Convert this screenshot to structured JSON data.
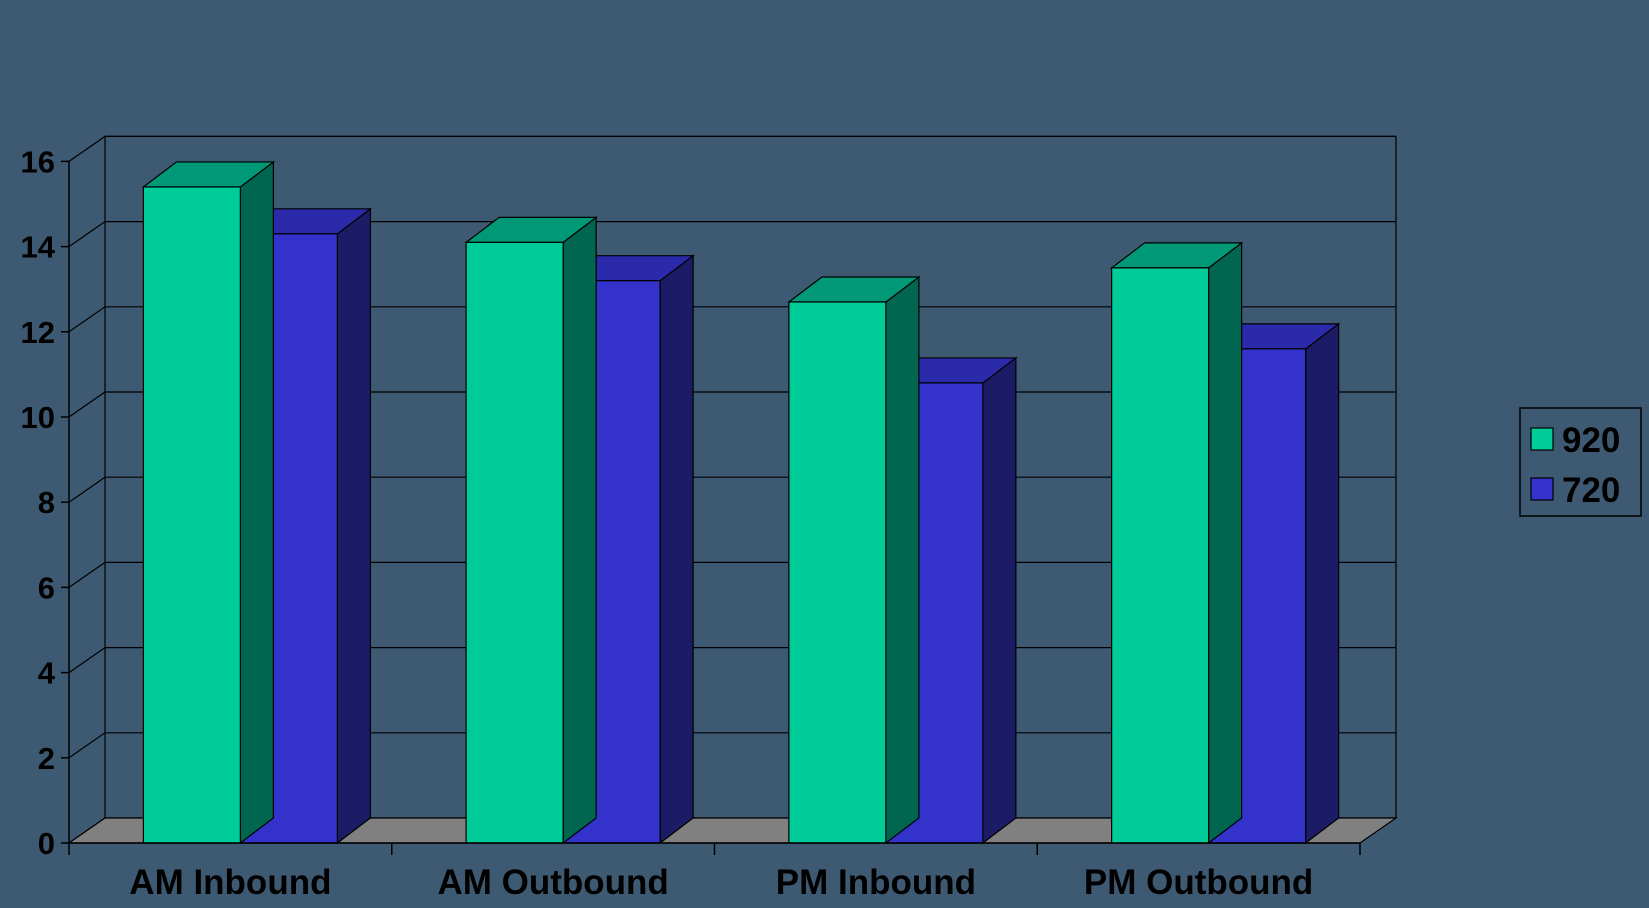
{
  "chart_data": {
    "type": "bar",
    "variant": "3d-clustered-column",
    "categories": [
      "AM Inbound",
      "AM Outbound",
      "PM Inbound",
      "PM Outbound"
    ],
    "series": [
      {
        "name": "920",
        "values": [
          15.4,
          14.1,
          12.7,
          13.5
        ]
      },
      {
        "name": "720",
        "values": [
          14.3,
          13.2,
          10.8,
          11.6
        ]
      }
    ],
    "ylim": [
      0,
      16
    ],
    "yticks": [
      0,
      2,
      4,
      6,
      8,
      10,
      12,
      14,
      16
    ],
    "grid": true,
    "legend": "right",
    "title": "",
    "xlabel": "",
    "ylabel": ""
  },
  "colors": {
    "background": "#3d5a72",
    "series_front": [
      "#00cc99",
      "#3333cc"
    ],
    "series_top": [
      "#009977",
      "#2a2aaa"
    ],
    "series_side": [
      "#006650",
      "#1c1c66"
    ],
    "floor": "#808080",
    "gridline": "#000000",
    "text": "#000000",
    "legend_swatch": [
      "#00cc99",
      "#3333cc"
    ]
  }
}
